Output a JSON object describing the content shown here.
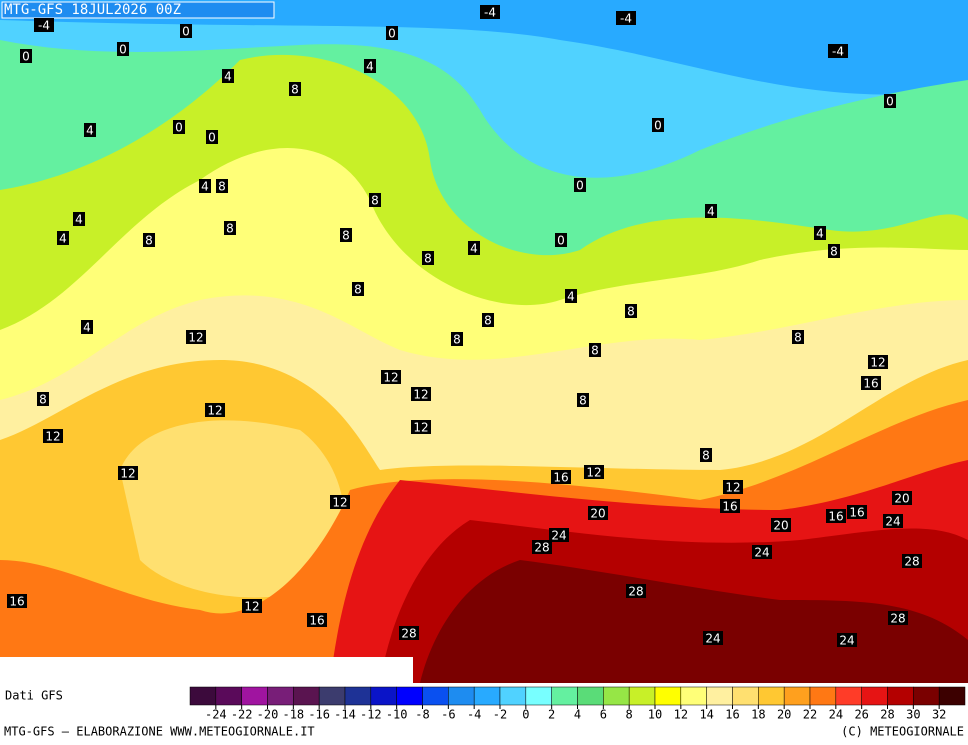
{
  "header": {
    "title": "MTG-GFS 18JUL2026 00Z"
  },
  "contour_labels": [
    -4,
    -4,
    -4,
    -4,
    0,
    0,
    0,
    0,
    4,
    4,
    8,
    0,
    4,
    0,
    0,
    0,
    4,
    8,
    0,
    8,
    4,
    8,
    8,
    4,
    4,
    8,
    0,
    4,
    8,
    4,
    8,
    8,
    4,
    8,
    8,
    4,
    8,
    12,
    8,
    8,
    12,
    12,
    16,
    12,
    8,
    12,
    8,
    12,
    12,
    8,
    12,
    16,
    12,
    12,
    12,
    16,
    20,
    20,
    16,
    16,
    20,
    24,
    24,
    28,
    24,
    28,
    28,
    16,
    12,
    28,
    16,
    28,
    24,
    24
  ],
  "colorbar": {
    "title": "Dati GFS",
    "ticks": [
      -24,
      -22,
      -20,
      -18,
      -16,
      -14,
      -12,
      -10,
      -8,
      -6,
      -4,
      -2,
      0,
      2,
      4,
      6,
      8,
      10,
      12,
      14,
      16,
      18,
      20,
      22,
      24,
      26,
      28,
      30,
      32
    ],
    "colors": [
      "#3c0a3c",
      "#5a0a5a",
      "#a014a0",
      "#781e78",
      "#5a1450",
      "#3c3c6e",
      "#1e3296",
      "#0a14c8",
      "#0000ff",
      "#0a50f0",
      "#1e8cf0",
      "#28aaff",
      "#50d2ff",
      "#78ffff",
      "#64f0a0",
      "#5adc78",
      "#96e646",
      "#c8f028",
      "#ffff00",
      "#ffff78",
      "#fff0a0",
      "#ffe070",
      "#ffc832",
      "#ffa01e",
      "#ff7814",
      "#ff3c28",
      "#e61414",
      "#b40000",
      "#7a0000",
      "#3c0000"
    ]
  },
  "footer": {
    "left": "MTG-GFS — ELABORAZIONE WWW.METEOGIORNALE.IT",
    "right": "(C) METEOGIORNALE"
  }
}
